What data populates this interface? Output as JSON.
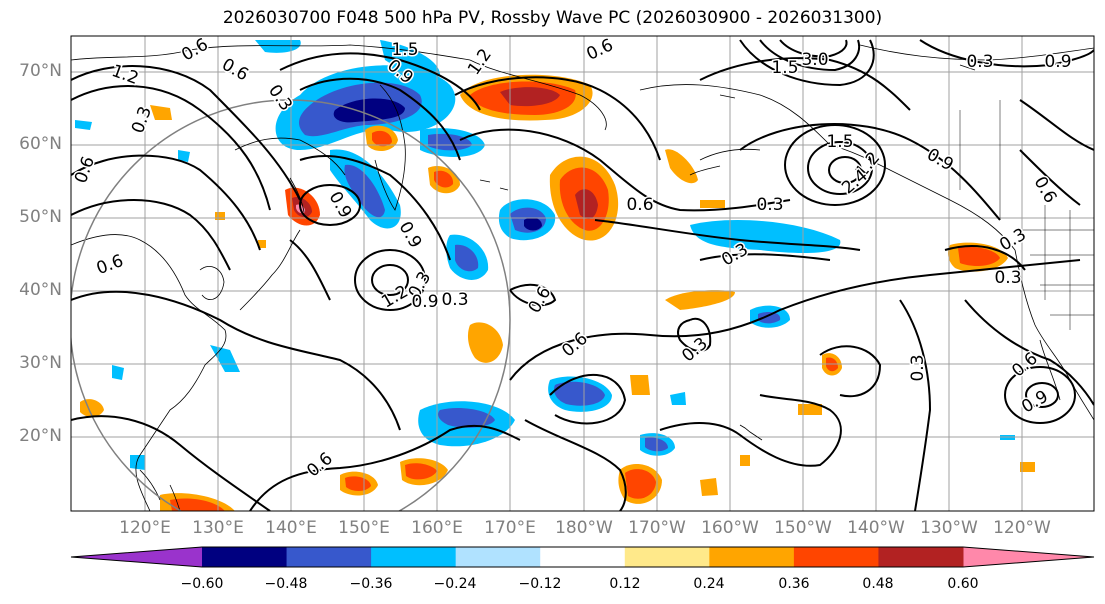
{
  "title": "2026030700 F048 500 hPa PV, Rossby Wave PC (2026030900 - 2026031300)",
  "lat_labels": [
    "70°N",
    "60°N",
    "50°N",
    "40°N",
    "30°N",
    "20°N"
  ],
  "lon_labels": [
    "120°E",
    "130°E",
    "140°E",
    "150°E",
    "160°E",
    "170°E",
    "180°W",
    "170°W",
    "160°W",
    "150°W",
    "140°W",
    "130°W",
    "120°W"
  ],
  "contour_labels": [
    "0.6",
    "1.5",
    "1.2",
    "0.9",
    "0.6",
    "0.3",
    "1.2",
    "0.3",
    "0.6",
    "0.6",
    "0.9",
    "0.9",
    "0.3",
    "1.2",
    "0.9",
    "0.3",
    "0.6",
    "0.6",
    "0.6",
    "0.3",
    "0.3",
    "0.6",
    "0.3",
    "0.9",
    "0.3",
    "0.3",
    "0.6",
    "0.9",
    "0.6",
    "1.5",
    "1.2",
    "2.4",
    "3.0",
    "1.5",
    "0.3",
    "0.9",
    "0.6",
    "0.3"
  ],
  "colorbar": {
    "ticks": [
      "−0.60",
      "−0.48",
      "−0.36",
      "−0.24",
      "−0.12",
      "0.12",
      "0.24",
      "0.36",
      "0.48",
      "0.60"
    ],
    "colors": [
      "#9a33cc",
      "#000080",
      "#3758cc",
      "#00bfff",
      "#b0e2ff",
      "#ffffff",
      "#ffe98a",
      "#ffa500",
      "#ff4500",
      "#b22222",
      "#ff88aa"
    ]
  }
}
